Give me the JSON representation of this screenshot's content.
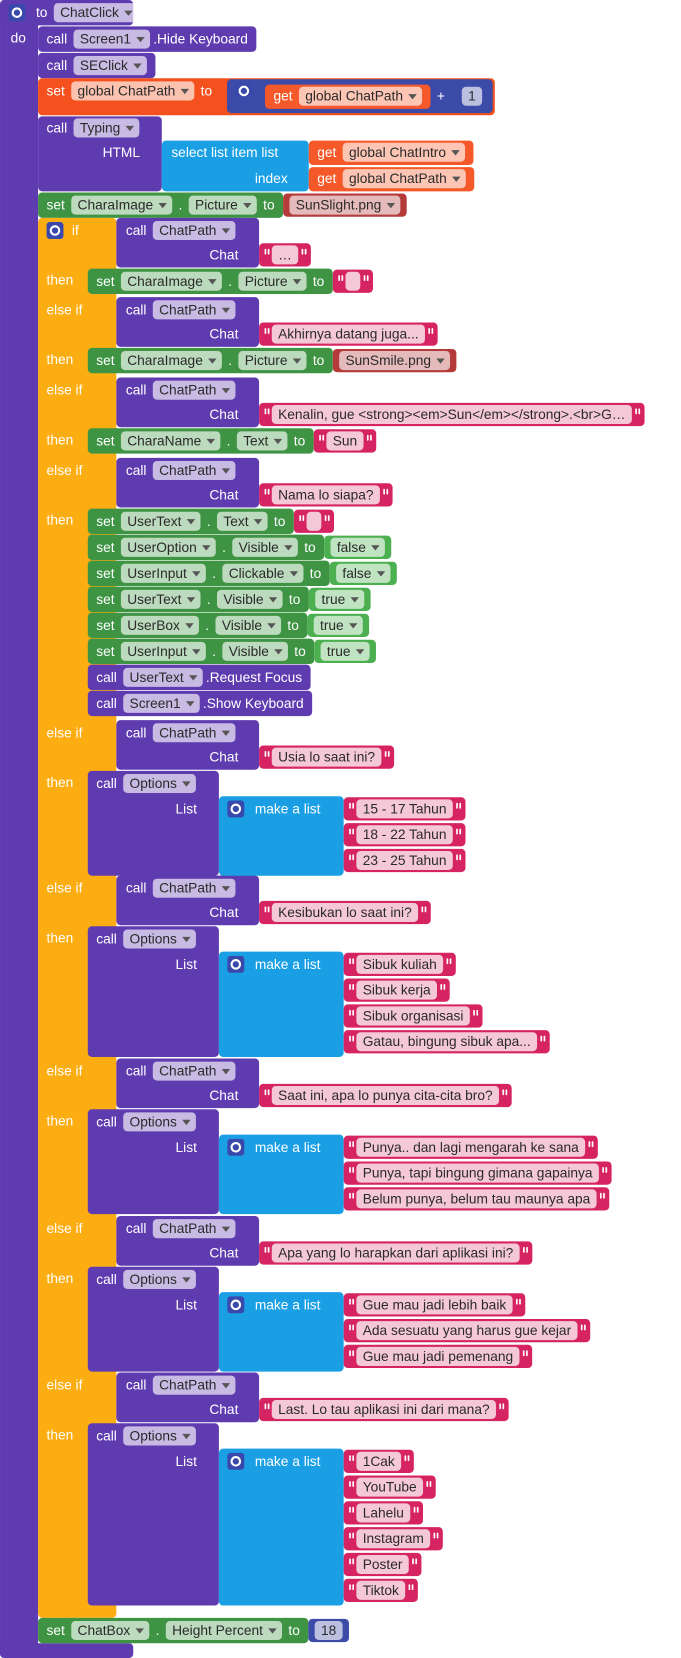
{
  "keywords": {
    "to": "to",
    "do": "do",
    "call": "call",
    "set": "set",
    "get": "get",
    "if": "if",
    "else_if": "else if",
    "then": "then",
    "dot": ".",
    "plus": "+",
    "html": "HTML",
    "select_list_item": "select list item  list",
    "index": "index",
    "chat": "Chat",
    "list": "List",
    "make_a_list": "make a list"
  },
  "procedure": {
    "name": "ChatClick"
  },
  "statements": {
    "hide_keyboard": {
      "component": "Screen1",
      "method": ".Hide Keyboard"
    },
    "se_click": {
      "component": "SEClick"
    },
    "increment_path": {
      "variable": "global ChatPath",
      "get_variable": "global ChatPath",
      "addend": 1
    },
    "typing": {
      "component": "Typing",
      "list_variable": "global ChatIntro",
      "index_variable": "global ChatPath"
    },
    "initial_picture": {
      "component": "CharaImage",
      "property": "Picture",
      "value": "SunSlight.png",
      "value_type": "asset"
    },
    "branches": [
      {
        "component": "ChatPath",
        "chat": "…",
        "actions": [
          {
            "component": "CharaImage",
            "property": "Picture",
            "value_type": "text"
          }
        ]
      },
      {
        "component": "ChatPath",
        "chat": "Akhirnya datang juga...",
        "actions": [
          {
            "component": "CharaImage",
            "property": "Picture",
            "value": "SunSmile.png",
            "value_type": "asset"
          }
        ]
      },
      {
        "component": "ChatPath",
        "chat": "Kenalin, gue <strong><em>Sun</em></strong>.<br>G…",
        "actions": [
          {
            "component": "CharaName",
            "property": "Text",
            "value": "Sun",
            "value_type": "text"
          }
        ]
      },
      {
        "component": "ChatPath",
        "chat": "Nama lo siapa?",
        "actions": [
          {
            "component": "UserText",
            "property": "Text",
            "value_type": "text"
          },
          {
            "component": "UserOption",
            "property": "Visible",
            "value": "false",
            "value_type": "logic"
          },
          {
            "component": "UserInput",
            "property": "Clickable",
            "value": "false",
            "value_type": "logic"
          },
          {
            "component": "UserText",
            "property": "Visible",
            "value": "true",
            "value_type": "logic"
          },
          {
            "component": "UserBox",
            "property": "Visible",
            "value": "true",
            "value_type": "logic"
          },
          {
            "component": "UserInput",
            "property": "Visible",
            "value": "true",
            "value_type": "logic"
          },
          {
            "component": "UserText",
            "method": ".Request Focus"
          },
          {
            "component": "Screen1",
            "method": ".Show Keyboard"
          }
        ]
      },
      {
        "component": "ChatPath",
        "chat": "Usia lo saat ini?",
        "options_component": "Options",
        "options": [
          "15 - 17 Tahun",
          "18 - 22 Tahun",
          "23 - 25 Tahun"
        ]
      },
      {
        "component": "ChatPath",
        "chat": "Kesibukan lo saat ini?",
        "options_component": "Options",
        "options": [
          "Sibuk kuliah",
          "Sibuk kerja",
          "Sibuk organisasi",
          "Gatau, bingung sibuk apa..."
        ]
      },
      {
        "component": "ChatPath",
        "chat": "Saat ini, apa lo punya cita-cita bro?",
        "options_component": "Options",
        "options": [
          "Punya.. dan lagi mengarah ke sana",
          "Punya, tapi bingung gimana gapainya",
          "Belum punya, belum tau maunya apa"
        ]
      },
      {
        "component": "ChatPath",
        "chat": "Apa yang lo harapkan dari aplikasi ini?",
        "options_component": "Options",
        "options": [
          "Gue mau jadi lebih baik",
          "Ada sesuatu yang harus gue kejar",
          "Gue mau jadi pemenang"
        ]
      },
      {
        "component": "ChatPath",
        "chat": "Last. Lo tau aplikasi ini dari mana?",
        "options_component": "Options",
        "options": [
          "1Cak",
          "YouTube",
          "Lahelu",
          "Instagram",
          "Poster",
          "Tiktok"
        ]
      }
    ],
    "chat_box_height": {
      "component": "ChatBox",
      "property": "Height Percent",
      "value": 18
    }
  }
}
